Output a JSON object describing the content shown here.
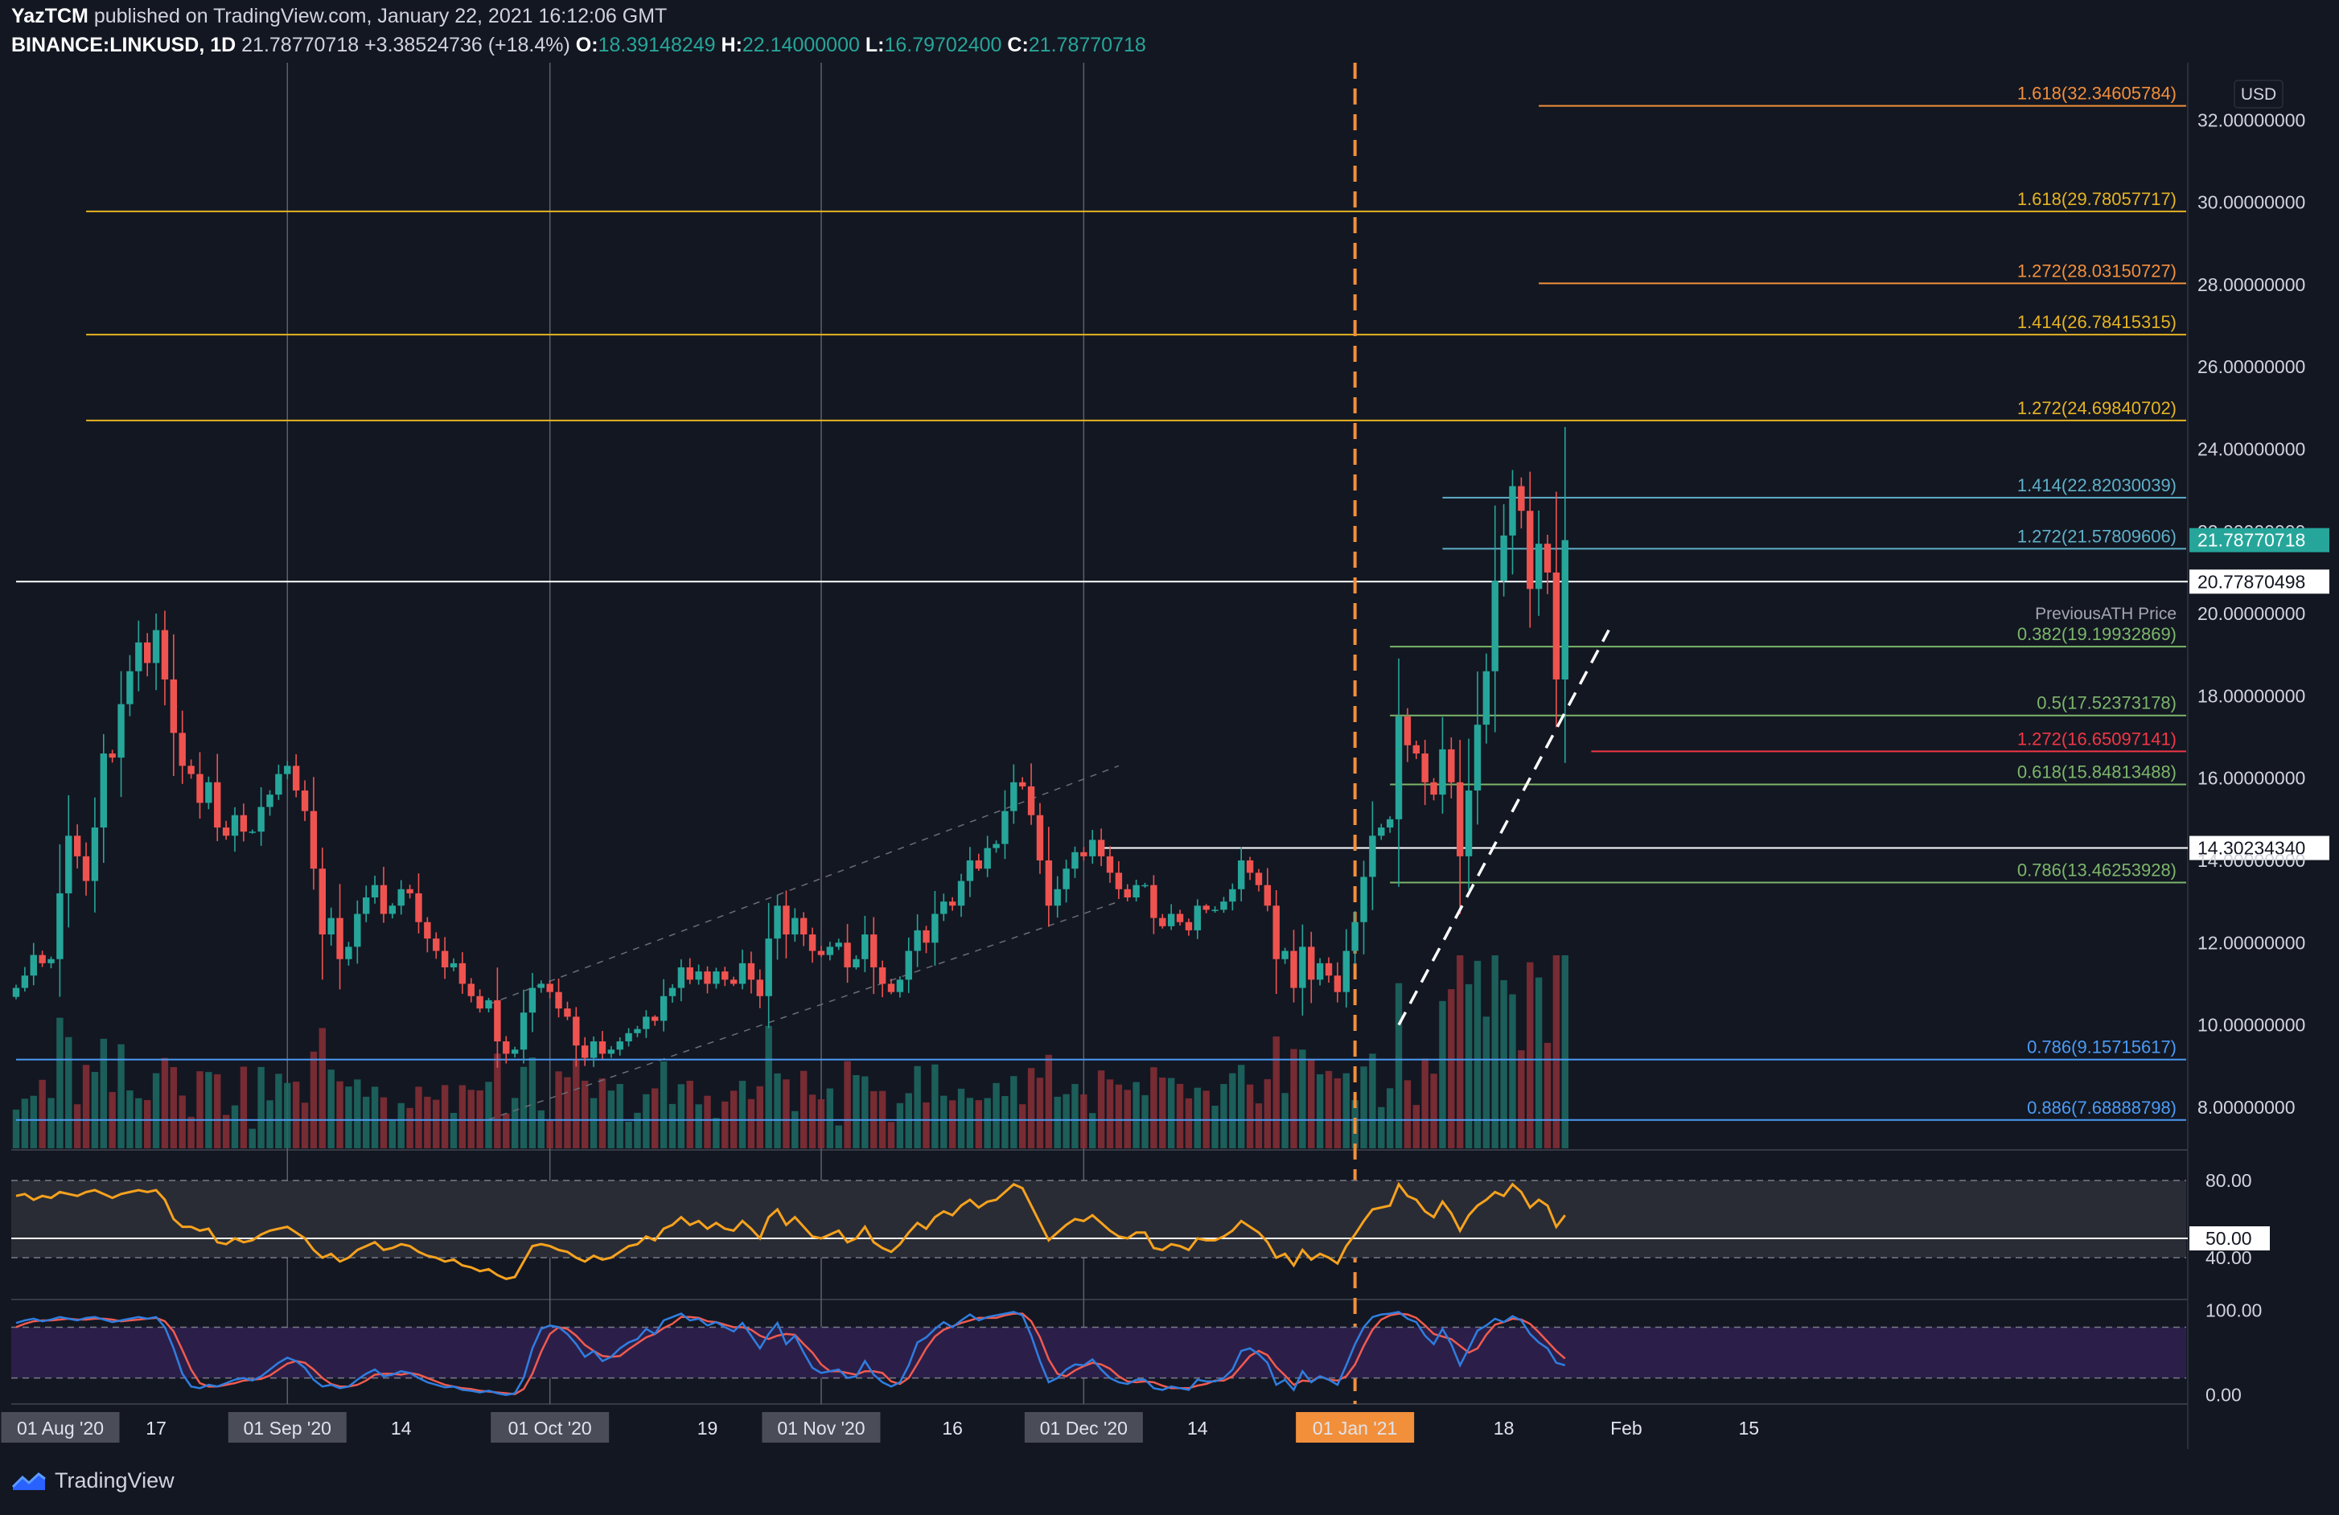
{
  "header": {
    "publisher": "YazTCM",
    "published_text": "published on TradingView.com, January 22, 2021 16:12:06 GMT",
    "symbol": "BINANCE:LINKUSD, 1D",
    "last": "21.78770718",
    "change": "+3.38524736 (+18.4%)",
    "o_label": "O:",
    "o": "18.39148249",
    "h_label": "H:",
    "h": "22.14000000",
    "l_label": "L:",
    "l": "16.79702400",
    "c_label": "C:",
    "c": "21.78770718"
  },
  "brand": {
    "name": "TradingView"
  },
  "chart_data": {
    "type": "candlestick",
    "currency": "USD",
    "y_axis_ticks": [
      "8.00000000",
      "10.00000000",
      "12.00000000",
      "14.00000000",
      "16.00000000",
      "18.00000000",
      "20.00000000",
      "22.00000000",
      "24.00000000",
      "26.00000000",
      "28.00000000",
      "30.00000000",
      "32.00000000"
    ],
    "ylim": [
      7.0,
      33.2
    ],
    "x_axis_labels": [
      {
        "text": "01 Aug '20",
        "day": 0,
        "boxed": true
      },
      {
        "text": "17",
        "day": 16,
        "boxed": false
      },
      {
        "text": "01 Sep '20",
        "day": 31,
        "boxed": true
      },
      {
        "text": "14",
        "day": 44,
        "boxed": false
      },
      {
        "text": "01 Oct '20",
        "day": 61,
        "boxed": true
      },
      {
        "text": "19",
        "day": 79,
        "boxed": false
      },
      {
        "text": "01 Nov '20",
        "day": 92,
        "boxed": true
      },
      {
        "text": "16",
        "day": 107,
        "boxed": false
      },
      {
        "text": "01 Dec '20",
        "day": 122,
        "boxed": true
      },
      {
        "text": "14",
        "day": 135,
        "boxed": false
      },
      {
        "text": "01 Jan '21",
        "day": 153,
        "boxed": true,
        "highlight": true
      },
      {
        "text": "18",
        "day": 170,
        "boxed": false
      },
      {
        "text": "Feb",
        "day": 184,
        "boxed": false
      },
      {
        "text": "15",
        "day": 198,
        "boxed": false
      }
    ],
    "vertical_marker": {
      "day": 153,
      "color": "#f28f3b",
      "label": "01 Jan '21"
    },
    "close_series": [
      10.9,
      11.2,
      11.7,
      11.5,
      11.6,
      13.2,
      14.6,
      14.1,
      13.5,
      14.8,
      16.6,
      16.5,
      17.8,
      18.6,
      19.3,
      18.8,
      19.6,
      18.4,
      17.1,
      16.3,
      16.1,
      15.4,
      15.9,
      14.8,
      14.6,
      15.1,
      14.7,
      14.7,
      15.3,
      15.6,
      16.1,
      16.3,
      15.7,
      15.2,
      13.8,
      12.2,
      12.6,
      11.6,
      11.9,
      12.7,
      13.1,
      13.4,
      12.7,
      12.9,
      13.3,
      13.2,
      12.5,
      12.1,
      11.8,
      11.4,
      11.5,
      11.0,
      10.7,
      10.4,
      10.6,
      9.6,
      9.3,
      9.4,
      10.3,
      10.9,
      11.0,
      10.8,
      10.4,
      10.2,
      9.5,
      9.2,
      9.6,
      9.3,
      9.4,
      9.6,
      9.8,
      9.9,
      10.2,
      10.1,
      10.7,
      10.9,
      11.4,
      11.1,
      11.3,
      11.0,
      11.3,
      11.1,
      11.0,
      11.5,
      11.1,
      10.7,
      12.1,
      12.9,
      12.2,
      12.6,
      12.2,
      11.8,
      11.7,
      11.9,
      12.0,
      11.4,
      11.6,
      12.2,
      11.4,
      11.0,
      10.8,
      11.1,
      11.8,
      12.3,
      12.0,
      12.7,
      13.0,
      12.9,
      13.5,
      14.0,
      13.8,
      14.3,
      14.4,
      15.2,
      15.9,
      15.8,
      15.1,
      14.0,
      12.9,
      13.3,
      13.8,
      14.2,
      14.1,
      14.5,
      14.1,
      13.7,
      13.3,
      13.1,
      13.4,
      13.4,
      12.6,
      12.4,
      12.7,
      12.5,
      12.3,
      12.9,
      12.8,
      12.8,
      13.0,
      13.3,
      14.0,
      13.7,
      13.4,
      12.9,
      11.6,
      11.8,
      10.9,
      11.9,
      11.1,
      11.5,
      11.2,
      10.8,
      11.8,
      12.5,
      13.6,
      14.6,
      14.8,
      15.0,
      17.5,
      16.8,
      16.6,
      15.9,
      15.6,
      16.7,
      15.9,
      14.1,
      15.7,
      17.3,
      18.6,
      20.8,
      21.9,
      23.1,
      22.5,
      20.6,
      21.7,
      21.0,
      18.4,
      21.78770718
    ],
    "fib_levels": [
      {
        "label": "1.618(32.34605784)",
        "value": 32.346,
        "color": "#f28f3b",
        "start_day": 174
      },
      {
        "label": "1.618(29.78057717)",
        "value": 29.781,
        "color": "#e6b422",
        "start_day": 8
      },
      {
        "label": "1.272(28.03150727)",
        "value": 28.032,
        "color": "#f28f3b",
        "start_day": 174
      },
      {
        "label": "1.414(26.78415315)",
        "value": 26.784,
        "color": "#e6b422",
        "start_day": 8
      },
      {
        "label": "1.272(24.69840702)",
        "value": 24.698,
        "color": "#e6b422",
        "start_day": 8
      },
      {
        "label": "1.414(22.82030039)",
        "value": 22.82,
        "color": "#5fb0c8",
        "start_day": 163
      },
      {
        "label": "1.272(21.57809606)",
        "value": 21.578,
        "color": "#5fb0c8",
        "start_day": 163
      },
      {
        "label": "0.382(19.19932869)",
        "value": 19.199,
        "color": "#7cb66a",
        "start_day": 157
      },
      {
        "label": "0.5(17.52373178)",
        "value": 17.524,
        "color": "#7cb66a",
        "start_day": 157
      },
      {
        "label": "1.272(16.65097141)",
        "value": 16.651,
        "color": "#f23645",
        "start_day": 180
      },
      {
        "label": "0.618(15.84813488)",
        "value": 15.848,
        "color": "#7cb66a",
        "start_day": 157
      },
      {
        "label": "0.786(13.46253928)",
        "value": 13.463,
        "color": "#7cb66a",
        "start_day": 157
      },
      {
        "label": "0.786(9.15715617)",
        "value": 9.157,
        "color": "#4b9bf5",
        "start_day": 0
      },
      {
        "label": "0.886(7.68888798)",
        "value": 7.689,
        "color": "#4b9bf5",
        "start_day": 0
      }
    ],
    "horizontal_lines": [
      {
        "value": 20.77870498,
        "label": "20.77870498",
        "color": "#ffffff",
        "start_day": 0
      },
      {
        "value": 14.3023434,
        "label": "14.30234340",
        "color": "#ffffff",
        "start_day": 124
      }
    ],
    "annotation": {
      "text": "PreviousATH Price",
      "value": 20.0
    },
    "last_price_tag": {
      "value": 21.78770718,
      "label": "21.78770718",
      "color": "#26a69a"
    },
    "trendline": {
      "from": [
        158,
        10.0
      ],
      "to": [
        182,
        19.6
      ],
      "color": "#ffffff",
      "style": "dashed"
    },
    "channel": {
      "lower": [
        [
          54,
          7.7
        ],
        [
          126,
          13.0
        ]
      ],
      "upper": [
        [
          54,
          10.5
        ],
        [
          126,
          16.3
        ]
      ]
    },
    "rsi": {
      "levels": [
        "80.00",
        "50.00",
        "40.00"
      ],
      "value_tag": "50.00",
      "color": "#f6a21e",
      "values": [
        72,
        73,
        70,
        72,
        71,
        74,
        73,
        72,
        74,
        75,
        73,
        71,
        73,
        74,
        75,
        74,
        75,
        70,
        60,
        56,
        56,
        54,
        55,
        48,
        47,
        50,
        48,
        49,
        52,
        54,
        55,
        56,
        53,
        50,
        44,
        40,
        42,
        38,
        40,
        44,
        46,
        48,
        44,
        45,
        47,
        46,
        43,
        41,
        40,
        38,
        39,
        36,
        35,
        33,
        34,
        31,
        29,
        30,
        38,
        46,
        47,
        46,
        44,
        43,
        40,
        38,
        41,
        39,
        40,
        43,
        46,
        47,
        51,
        49,
        55,
        57,
        61,
        57,
        59,
        55,
        58,
        55,
        54,
        59,
        55,
        50,
        61,
        65,
        57,
        61,
        56,
        51,
        50,
        52,
        54,
        48,
        50,
        56,
        48,
        45,
        43,
        47,
        53,
        58,
        55,
        61,
        64,
        62,
        67,
        70,
        66,
        69,
        70,
        74,
        78,
        76,
        67,
        58,
        49,
        53,
        57,
        60,
        59,
        62,
        58,
        54,
        51,
        50,
        53,
        53,
        45,
        44,
        47,
        46,
        44,
        50,
        49,
        49,
        51,
        54,
        59,
        56,
        53,
        48,
        40,
        42,
        36,
        44,
        39,
        42,
        40,
        37,
        46,
        52,
        59,
        65,
        66,
        67,
        78,
        72,
        70,
        64,
        61,
        69,
        63,
        54,
        62,
        67,
        70,
        74,
        72,
        78,
        74,
        66,
        70,
        67,
        56,
        62
      ]
    },
    "stoch_rsi": {
      "levels": [
        "100.00",
        "0.00"
      ],
      "k_color": "#2f7ee0",
      "d_color": "#f05b4f",
      "k": [
        85,
        88,
        90,
        87,
        89,
        92,
        90,
        88,
        91,
        92,
        89,
        86,
        88,
        90,
        92,
        90,
        92,
        80,
        55,
        25,
        10,
        8,
        12,
        10,
        14,
        18,
        20,
        17,
        22,
        30,
        38,
        44,
        40,
        32,
        18,
        10,
        12,
        8,
        10,
        18,
        25,
        30,
        22,
        24,
        28,
        26,
        20,
        15,
        12,
        9,
        10,
        6,
        5,
        3,
        5,
        2,
        0,
        2,
        20,
        55,
        78,
        82,
        80,
        72,
        60,
        45,
        52,
        40,
        45,
        55,
        62,
        66,
        78,
        72,
        88,
        92,
        96,
        88,
        90,
        82,
        86,
        80,
        75,
        85,
        70,
        55,
        72,
        85,
        60,
        70,
        50,
        32,
        26,
        28,
        30,
        20,
        22,
        40,
        24,
        15,
        10,
        15,
        35,
        62,
        68,
        78,
        86,
        80,
        88,
        95,
        88,
        92,
        94,
        96,
        98,
        94,
        70,
        40,
        15,
        20,
        30,
        36,
        35,
        42,
        30,
        20,
        15,
        13,
        18,
        18,
        8,
        6,
        10,
        8,
        6,
        18,
        16,
        16,
        20,
        30,
        52,
        55,
        48,
        38,
        12,
        18,
        6,
        28,
        15,
        22,
        18,
        12,
        35,
        60,
        80,
        92,
        95,
        96,
        98,
        90,
        86,
        70,
        60,
        78,
        60,
        35,
        55,
        76,
        82,
        90,
        86,
        93,
        88,
        72,
        62,
        55,
        38,
        35
      ],
      "d": [
        80,
        84,
        87,
        88,
        88,
        89,
        90,
        89,
        89,
        90,
        90,
        89,
        87,
        88,
        89,
        90,
        91,
        87,
        75,
        53,
        30,
        14,
        10,
        10,
        12,
        14,
        17,
        18,
        19,
        23,
        30,
        37,
        40,
        38,
        30,
        20,
        13,
        10,
        10,
        12,
        17,
        24,
        25,
        25,
        24,
        26,
        24,
        20,
        16,
        12,
        10,
        8,
        7,
        5,
        4,
        3,
        2,
        1,
        7,
        25,
        51,
        72,
        80,
        78,
        70,
        59,
        52,
        46,
        45,
        46,
        54,
        61,
        68,
        72,
        79,
        84,
        92,
        92,
        91,
        87,
        86,
        83,
        80,
        80,
        77,
        70,
        66,
        70,
        72,
        71,
        60,
        50,
        36,
        28,
        28,
        26,
        24,
        28,
        28,
        26,
        16,
        13,
        20,
        37,
        55,
        69,
        77,
        81,
        85,
        88,
        91,
        91,
        91,
        94,
        96,
        96,
        87,
        68,
        42,
        25,
        22,
        29,
        34,
        38,
        36,
        31,
        22,
        16,
        15,
        16,
        15,
        11,
        8,
        8,
        8,
        11,
        13,
        17,
        17,
        22,
        34,
        46,
        52,
        47,
        33,
        23,
        12,
        17,
        16,
        22,
        18,
        17,
        22,
        36,
        58,
        77,
        89,
        94,
        96,
        95,
        91,
        82,
        72,
        69,
        66,
        58,
        50,
        55,
        71,
        83,
        86,
        90,
        89,
        84,
        74,
        63,
        52,
        43
      ]
    }
  }
}
